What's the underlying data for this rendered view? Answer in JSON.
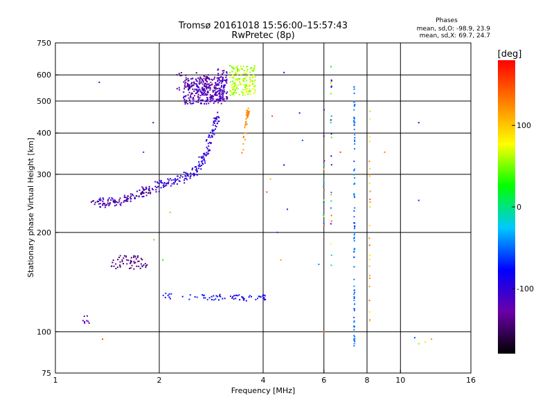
{
  "header": {
    "title_line1": "Tromsø 20161018 15:56:00–15:57:43",
    "title_line2": "RwPretec (8p)",
    "phase_title": "Phases",
    "phase_line1": "mean, sd,O:  -98.9, 23.9",
    "phase_line2": "mean, sd,X:  69.7, 24.7"
  },
  "colorbar": {
    "label": "[deg]",
    "ticks": [
      {
        "value": 100,
        "label": "100"
      },
      {
        "value": 0,
        "label": "0"
      },
      {
        "value": -100,
        "label": "-100"
      }
    ],
    "range": [
      -180,
      180
    ],
    "colors": [
      "#000000",
      "#6a00a8",
      "#0000ff",
      "#00c8ff",
      "#00ff00",
      "#ffff00",
      "#ff8000",
      "#ff0000"
    ]
  },
  "chart_data": {
    "type": "scatter",
    "xscale": "log",
    "yscale": "log",
    "xlim": [
      1,
      16
    ],
    "ylim": [
      75,
      750
    ],
    "xlabel": "Frequency [MHz]",
    "ylabel": "Stationary phase Virtual Height [km]",
    "xticks": [
      1,
      2,
      4,
      6,
      8,
      10,
      16
    ],
    "xtick_labels": [
      "1",
      "2",
      "4",
      "6",
      "8",
      "10",
      "16"
    ],
    "yticks": [
      75,
      100,
      200,
      300,
      400,
      500,
      600,
      750
    ],
    "ytick_labels": [
      "75",
      "100",
      "200",
      "300",
      "400",
      "500",
      "600",
      "750"
    ],
    "xgrid": [
      2,
      4,
      6,
      8,
      10
    ],
    "ygrid": [
      100,
      200,
      300,
      400,
      500,
      600
    ],
    "color_by": "phase (deg)",
    "clusters": [
      {
        "name": "o-trace-F-lower",
        "type": "curve",
        "path": [
          [
            1.3,
            245
          ],
          [
            1.45,
            246
          ],
          [
            1.6,
            252
          ],
          [
            1.75,
            262
          ],
          [
            1.9,
            272
          ],
          [
            2.1,
            282
          ],
          [
            2.3,
            290
          ],
          [
            2.5,
            302
          ],
          [
            2.62,
            320
          ],
          [
            2.72,
            345
          ],
          [
            2.82,
            380
          ],
          [
            2.9,
            420
          ],
          [
            2.95,
            450
          ]
        ],
        "dx": 0.02,
        "dy": 0.035,
        "n": 230,
        "phase": [
          -120,
          -80
        ],
        "seed": 11
      },
      {
        "name": "o-trace-F-lower-purple",
        "type": "curve",
        "path": [
          [
            1.28,
            245
          ],
          [
            1.5,
            246
          ],
          [
            1.7,
            257
          ],
          [
            1.9,
            270
          ]
        ],
        "dx": 0.015,
        "dy": 0.02,
        "n": 60,
        "phase": [
          -150,
          -125
        ],
        "seed": 12
      },
      {
        "name": "spread-F-cusp",
        "type": "box",
        "x": [
          2.35,
          3.1
        ],
        "y": [
          490,
          590
        ],
        "n": 300,
        "phase": [
          -140,
          -95
        ],
        "seed": 21
      },
      {
        "name": "spread-F-top",
        "type": "box",
        "x": [
          2.25,
          2.8
        ],
        "y": [
          540,
          610
        ],
        "n": 40,
        "phase": [
          -150,
          -120
        ],
        "seed": 22
      },
      {
        "name": "spread-F-column",
        "type": "box",
        "x": [
          2.95,
          3.15
        ],
        "y": [
          500,
          630
        ],
        "n": 60,
        "phase": [
          -130,
          -100
        ],
        "seed": 23
      },
      {
        "name": "x-trace-top",
        "type": "box",
        "x": [
          3.2,
          3.8
        ],
        "y": [
          520,
          640
        ],
        "n": 160,
        "phase": [
          40,
          80
        ],
        "seed": 31
      },
      {
        "name": "x-trace-vertical",
        "type": "curve",
        "path": [
          [
            3.5,
            350
          ],
          [
            3.55,
            400
          ],
          [
            3.6,
            450
          ],
          [
            3.62,
            480
          ]
        ],
        "dx": 0.01,
        "dy": 0.02,
        "n": 40,
        "phase": [
          110,
          140
        ],
        "seed": 32
      },
      {
        "name": "E-trace-pink",
        "type": "box",
        "x": [
          1.45,
          1.85
        ],
        "y": [
          155,
          170
        ],
        "n": 60,
        "phase": [
          -150,
          -130
        ],
        "seed": 41
      },
      {
        "name": "E-trace-blue",
        "type": "curve",
        "path": [
          [
            2.05,
            130
          ],
          [
            2.15,
            128
          ],
          [
            2.7,
            127
          ],
          [
            2.9,
            127
          ],
          [
            3.3,
            128
          ],
          [
            3.6,
            126
          ],
          [
            3.95,
            127
          ],
          [
            4.05,
            127
          ]
        ],
        "dx": 0.01,
        "dy": 0.02,
        "n": 70,
        "phase": [
          -110,
          -60
        ],
        "seed": 42
      },
      {
        "name": "E-low",
        "type": "box",
        "x": [
          1.2,
          1.26
        ],
        "y": [
          106,
          113
        ],
        "n": 8,
        "phase": [
          -130,
          -110
        ],
        "seed": 43
      },
      {
        "name": "col-7.3",
        "type": "column",
        "x": 7.35,
        "y": [
          90,
          560
        ],
        "n": 90,
        "phase": [
          -60,
          -40
        ],
        "seed": 51
      },
      {
        "name": "col-6.3",
        "type": "column",
        "x": 6.3,
        "y": [
          150,
          640
        ],
        "n": 26,
        "phase": [
          -150,
          150
        ],
        "seed": 52
      },
      {
        "name": "col-8.1",
        "type": "column",
        "x": 8.15,
        "y": [
          100,
          500
        ],
        "n": 26,
        "phase": [
          80,
          160
        ],
        "seed": 53
      },
      {
        "name": "col-6.0",
        "type": "column",
        "x": 6.0,
        "y": [
          190,
          480
        ],
        "n": 14,
        "phase": [
          -160,
          150
        ],
        "seed": 54
      },
      {
        "name": "sporadic-points",
        "type": "points",
        "points": [
          [
            1.34,
            570,
            -140
          ],
          [
            1.37,
            95,
            150
          ],
          [
            1.8,
            350,
            -60
          ],
          [
            1.92,
            430,
            -130
          ],
          [
            1.93,
            190,
            120
          ],
          [
            2.05,
            165,
            20
          ],
          [
            2.15,
            230,
            110
          ],
          [
            4.1,
            265,
            150
          ],
          [
            4.2,
            290,
            110
          ],
          [
            4.25,
            450,
            150
          ],
          [
            4.4,
            200,
            -60
          ],
          [
            4.5,
            165,
            120
          ],
          [
            4.6,
            320,
            -80
          ],
          [
            4.6,
            610,
            -90
          ],
          [
            4.7,
            235,
            -120
          ],
          [
            5.1,
            460,
            -100
          ],
          [
            5.2,
            380,
            -60
          ],
          [
            5.8,
            160,
            -40
          ],
          [
            6.0,
            100,
            140
          ],
          [
            6.7,
            350,
            150
          ],
          [
            9.0,
            350,
            130
          ],
          [
            11.3,
            250,
            -110
          ],
          [
            11.3,
            430,
            -110
          ],
          [
            11.0,
            96,
            -60
          ],
          [
            11.3,
            92,
            50
          ],
          [
            11.8,
            93,
            90
          ],
          [
            12.3,
            95,
            120
          ]
        ],
        "phase": [
          0,
          0
        ],
        "seed": 61
      }
    ]
  }
}
